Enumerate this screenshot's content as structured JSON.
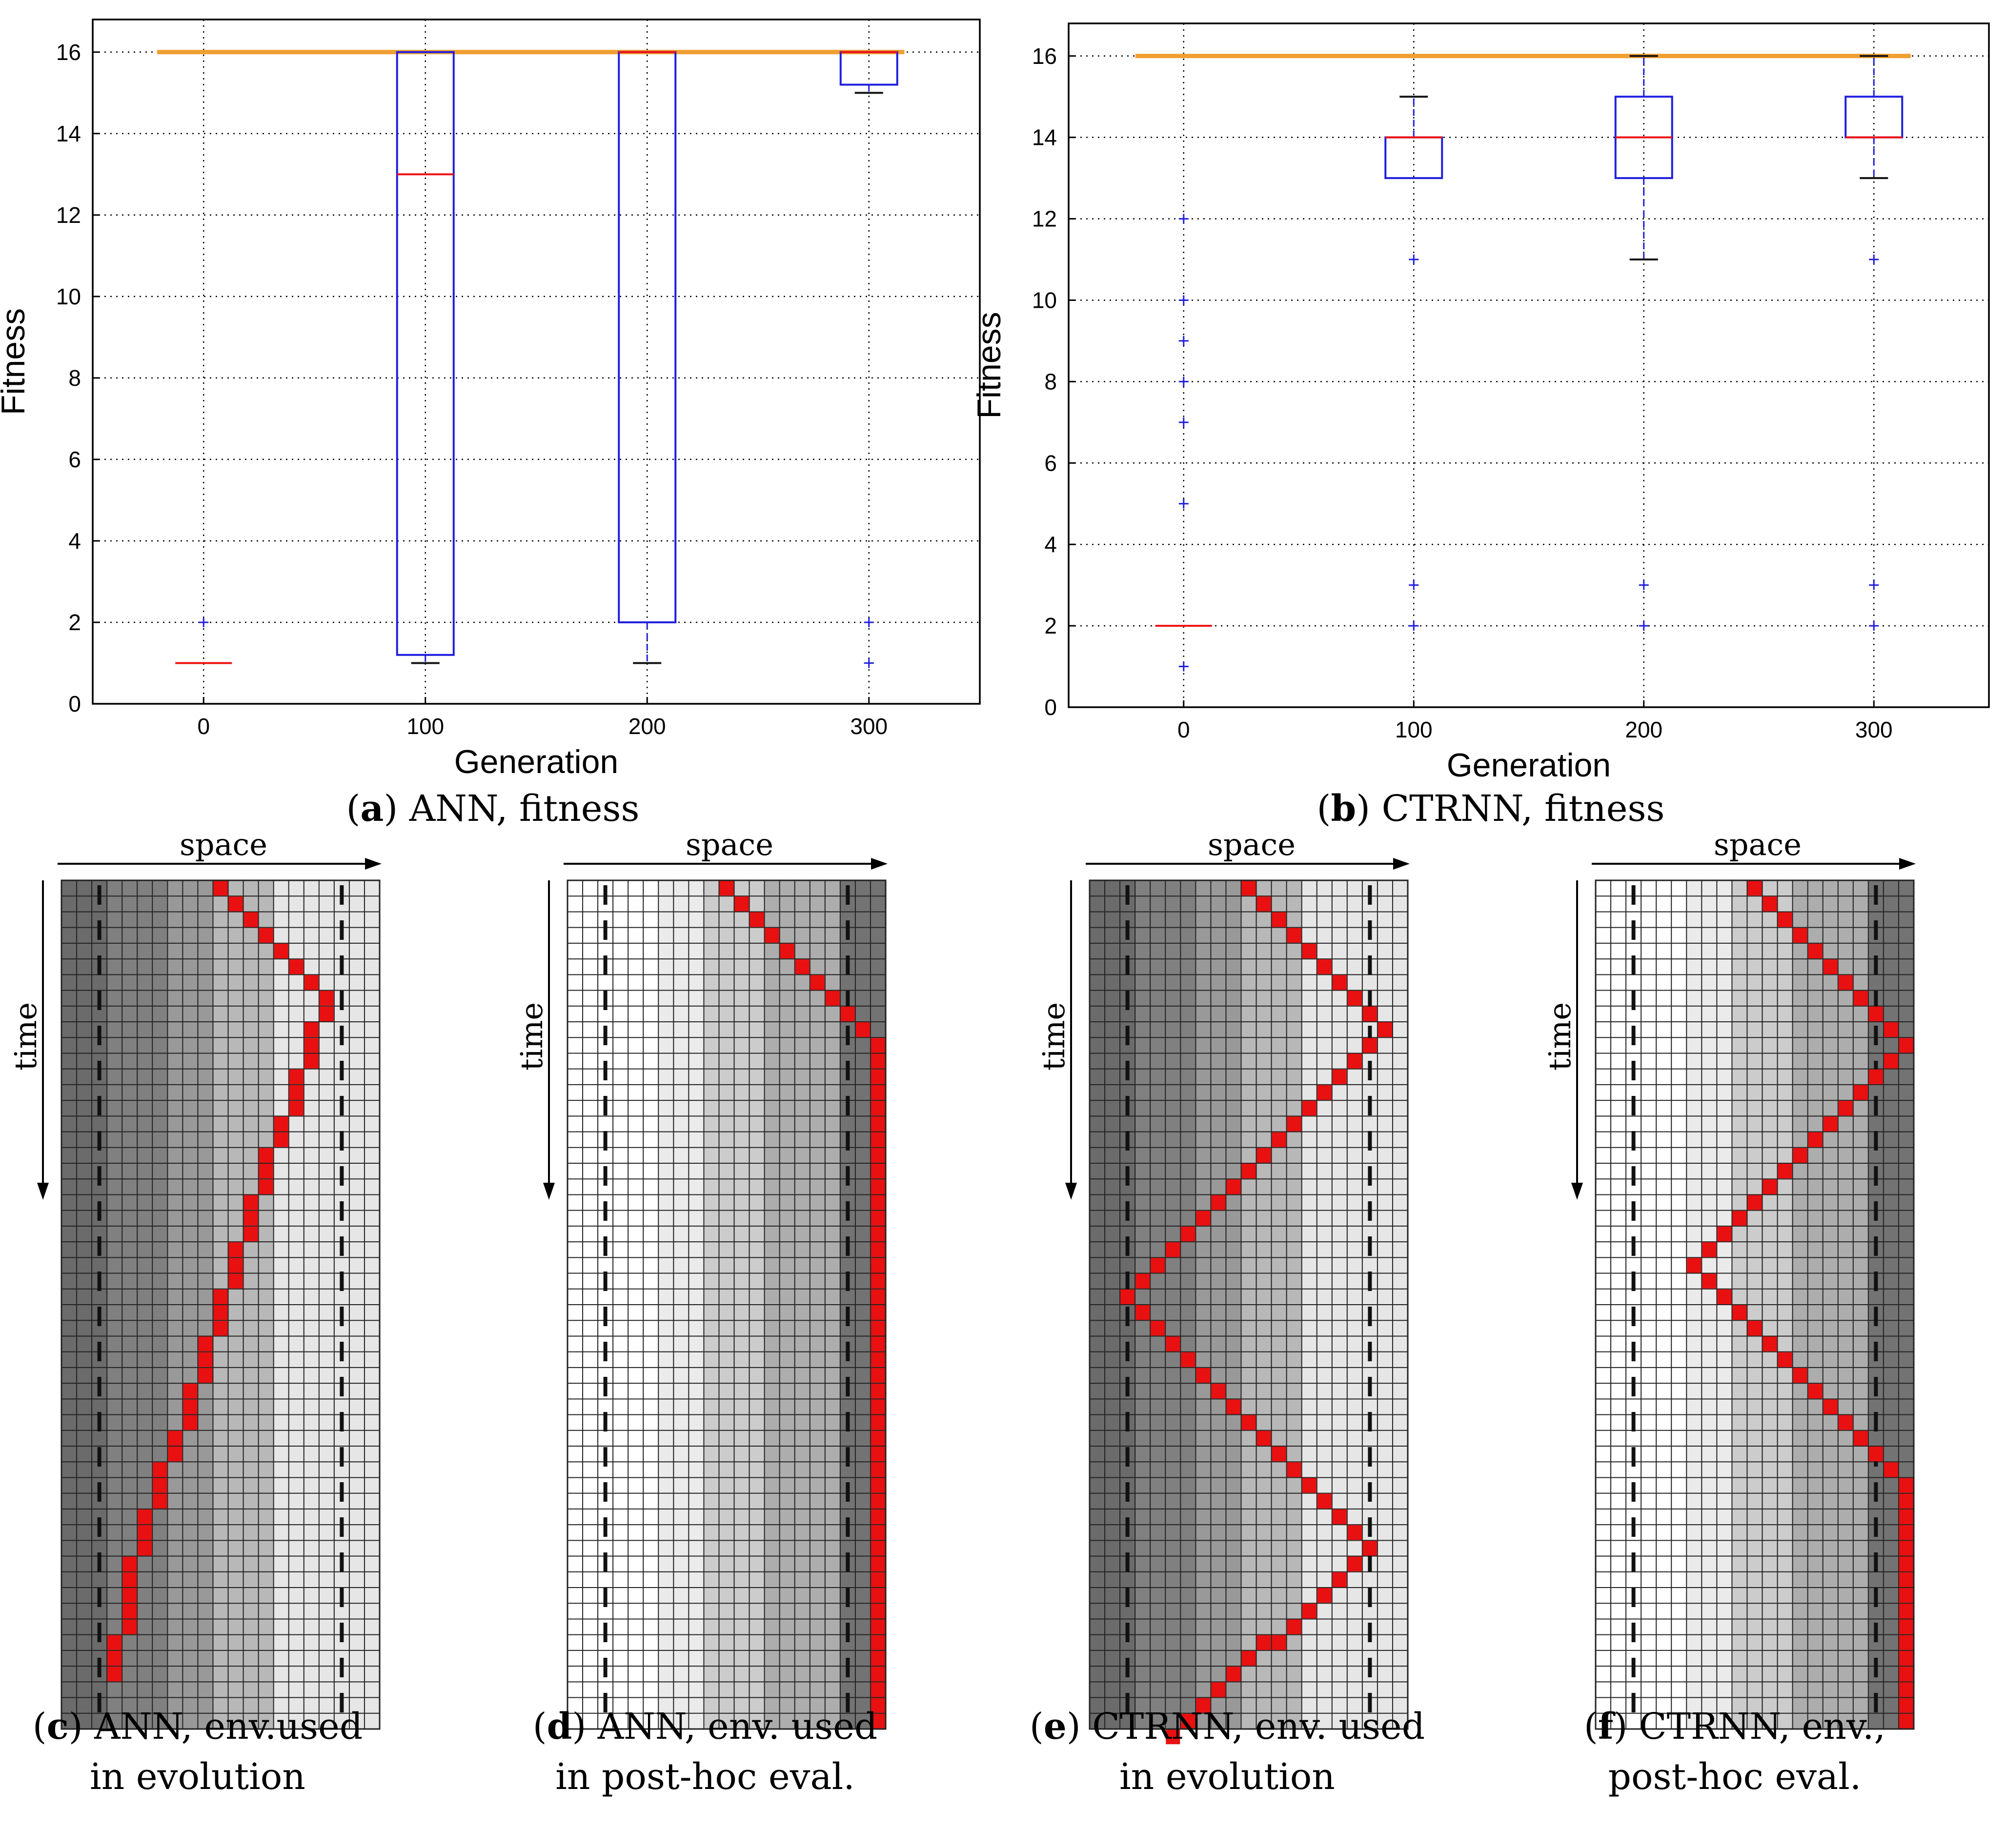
{
  "chart_data": [
    {
      "type": "box",
      "caption": {
        "letter": "a",
        "text": "ANN, fitness"
      },
      "xlabel": "Generation",
      "ylabel": "Fitness",
      "x_ticks": [
        0,
        100,
        200,
        300
      ],
      "y_ticks": [
        0,
        2,
        4,
        6,
        8,
        10,
        12,
        14,
        16
      ],
      "xlim": [
        -50,
        350
      ],
      "ylim": [
        0,
        16.8
      ],
      "grid": true,
      "boxes": [
        {
          "x": 0,
          "q1": 1,
          "median": 1,
          "q3": 1,
          "whisker_low": 1,
          "whisker_high": 1,
          "fliers": [
            2
          ],
          "mean_line": 16
        },
        {
          "x": 100,
          "q1": 1.2,
          "median": 13,
          "q3": 16,
          "whisker_low": 1,
          "whisker_high": 16,
          "fliers": [],
          "mean_line": 16
        },
        {
          "x": 200,
          "q1": 2,
          "median": 16,
          "q3": 16,
          "whisker_low": 1,
          "whisker_high": 16,
          "fliers": [],
          "mean_line": 16
        },
        {
          "x": 300,
          "q1": 15.2,
          "median": 16,
          "q3": 16,
          "whisker_low": 15,
          "whisker_high": 16,
          "fliers": [
            2,
            1
          ],
          "mean_line": 16
        }
      ],
      "colors": {
        "box": "#1f1fdd",
        "median": "#ee1111",
        "whisker": "#111111",
        "flier": "#1f1fdd",
        "top_line": "#f0a030"
      }
    },
    {
      "type": "box",
      "caption": {
        "letter": "b",
        "text": "CTRNN, fitness"
      },
      "xlabel": "Generation",
      "ylabel": "Fitness",
      "x_ticks": [
        0,
        100,
        200,
        300
      ],
      "y_ticks": [
        0,
        2,
        4,
        6,
        8,
        10,
        12,
        14,
        16
      ],
      "xlim": [
        -50,
        350
      ],
      "ylim": [
        0,
        16.8
      ],
      "grid": true,
      "boxes": [
        {
          "x": 0,
          "q1": 2,
          "median": 2,
          "q3": 2,
          "whisker_low": 2,
          "whisker_high": 2,
          "fliers": [
            12,
            10,
            9,
            8,
            7,
            5,
            1
          ],
          "mean_line": 16
        },
        {
          "x": 100,
          "q1": 13,
          "median": 14,
          "q3": 14,
          "whisker_low": 13,
          "whisker_high": 15,
          "fliers": [
            11,
            3,
            2
          ],
          "mean_line": 16
        },
        {
          "x": 200,
          "q1": 13,
          "median": 14,
          "q3": 15,
          "whisker_low": 11,
          "whisker_high": 16,
          "fliers": [
            3,
            2
          ],
          "mean_line": 16
        },
        {
          "x": 300,
          "q1": 14,
          "median": 14,
          "q3": 15,
          "whisker_low": 13,
          "whisker_high": 16,
          "fliers": [
            11,
            3,
            2
          ],
          "mean_line": 16
        }
      ],
      "colors": {
        "box": "#1f1fdd",
        "median": "#ee1111",
        "whisker": "#111111",
        "flier": "#1f1fdd",
        "top_line": "#f0a030"
      }
    },
    {
      "type": "heatmap",
      "caption": {
        "letter": "c",
        "line1": "ANN, env.used",
        "line2": "in evolution"
      },
      "space_label": "space",
      "time_label": "time",
      "grid": {
        "cols": 21,
        "rows": 54
      },
      "column_gray_levels": [
        0.42,
        0.42,
        0.42,
        0.5,
        0.5,
        0.5,
        0.5,
        0.6,
        0.6,
        0.6,
        0.72,
        0.72,
        0.72,
        0.72,
        0.9,
        0.9,
        0.9,
        0.9,
        0.9,
        0.9,
        0.9
      ],
      "dashed_line_columns": [
        2.5,
        18.5
      ],
      "path_waypoints": [
        [
          0,
          10
        ],
        [
          7,
          17
        ],
        [
          44,
          4
        ],
        [
          50,
          3
        ]
      ],
      "path_points": "",
      "colors": {
        "trail": "#e81010",
        "grid_line": "#222222",
        "dash": "#111111"
      }
    },
    {
      "type": "heatmap",
      "caption": {
        "letter": "d",
        "line1": "ANN, env. used",
        "line2": "in post-hoc eval."
      },
      "space_label": "space",
      "time_label": "time",
      "grid": {
        "cols": 21,
        "rows": 54
      },
      "column_gray_levels": [
        1,
        1,
        1,
        1,
        1,
        1,
        0.92,
        0.92,
        0.92,
        0.8,
        0.8,
        0.8,
        0.8,
        0.68,
        0.68,
        0.68,
        0.68,
        0.68,
        0.45,
        0.45,
        0.45
      ],
      "dashed_line_columns": [
        2.5,
        18.5
      ],
      "path_waypoints": [
        [
          0,
          10
        ],
        [
          10,
          20
        ],
        [
          53,
          20
        ]
      ],
      "colors": {
        "trail": "#e81010",
        "grid_line": "#222222",
        "dash": "#111111"
      }
    },
    {
      "type": "heatmap",
      "caption": {
        "letter": "e",
        "line1": "CTRNN, env. used",
        "line2": "in evolution"
      },
      "space_label": "space",
      "time_label": "time",
      "grid": {
        "cols": 21,
        "rows": 54
      },
      "column_gray_levels": [
        0.42,
        0.42,
        0.42,
        0.5,
        0.5,
        0.5,
        0.5,
        0.6,
        0.6,
        0.6,
        0.72,
        0.72,
        0.72,
        0.72,
        0.9,
        0.9,
        0.9,
        0.9,
        0.9,
        0.9,
        0.9
      ],
      "dashed_line_columns": [
        2.5,
        18.5
      ],
      "path_waypoints": [
        [
          0,
          10
        ],
        [
          9,
          19
        ],
        [
          26,
          2
        ],
        [
          42,
          18
        ],
        [
          54,
          5
        ]
      ],
      "colors": {
        "trail": "#e81010",
        "grid_line": "#222222",
        "dash": "#111111"
      }
    },
    {
      "type": "heatmap",
      "caption": {
        "letter": "f",
        "line1": "CTRNN, env.,",
        "line2": "post-hoc eval."
      },
      "space_label": "space",
      "time_label": "time",
      "grid": {
        "cols": 21,
        "rows": 54
      },
      "column_gray_levels": [
        1,
        1,
        1,
        1,
        1,
        1,
        0.92,
        0.92,
        0.92,
        0.8,
        0.8,
        0.8,
        0.8,
        0.68,
        0.68,
        0.68,
        0.68,
        0.68,
        0.45,
        0.45,
        0.45
      ],
      "dashed_line_columns": [
        2.5,
        18.5
      ],
      "path_waypoints": [
        [
          0,
          10
        ],
        [
          10,
          20
        ],
        [
          24,
          6
        ],
        [
          37,
          19
        ],
        [
          38,
          20
        ],
        [
          53,
          20
        ]
      ],
      "colors": {
        "trail": "#e81010",
        "grid_line": "#222222",
        "dash": "#111111"
      }
    }
  ]
}
